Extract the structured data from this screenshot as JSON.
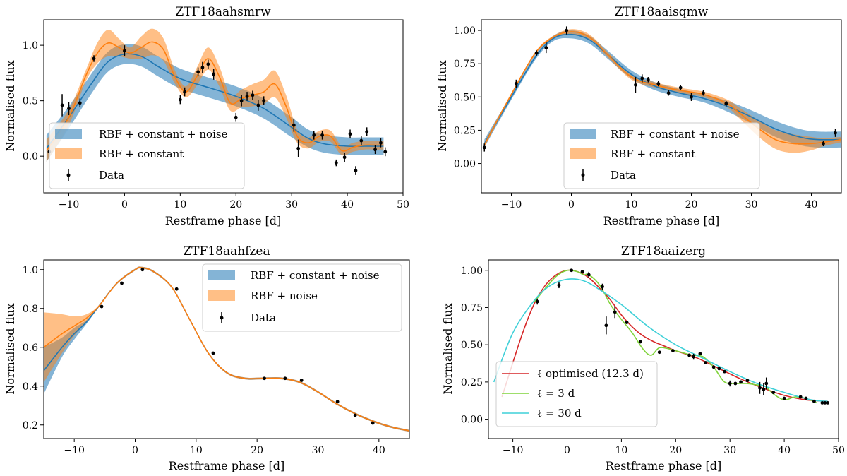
{
  "figure": {
    "panel_titles": [
      "ZTF18aahsmrw",
      "ZTF18aaisqmw",
      "ZTF18aahfzea",
      "ZTF18aaizerg"
    ],
    "xlabel": "Restframe phase [d]",
    "ylabel": "Normalised flux"
  },
  "colors": {
    "blue": "#1f77b4",
    "orange": "#ff7f0e",
    "red": "#d62728",
    "green": "#7fd33a",
    "cyan": "#3fd0d8",
    "data": "#000000"
  },
  "chart_data": [
    {
      "type": "line",
      "title": "ZTF18aahsmrw",
      "xlabel": "Restframe phase [d]",
      "ylabel": "Normalised flux",
      "xlim": [
        -14.5,
        50
      ],
      "ylim": [
        -0.33,
        1.23
      ],
      "xticks": [
        -10,
        0,
        10,
        20,
        30,
        40,
        50
      ],
      "yticks": [
        0.0,
        0.5,
        1.0
      ],
      "ytick_labels": [
        "0.0",
        "0.5",
        "1.0"
      ],
      "legend_position": "lower-left",
      "legend": [
        "RBF + constant + noise",
        "RBF + constant",
        "Data"
      ],
      "series": [
        {
          "name": "RBF + constant + noise",
          "color": "blue",
          "band": true,
          "x": [
            -14,
            -10,
            -6,
            -3,
            0,
            3,
            6,
            10,
            15,
            20,
            25,
            30,
            33,
            36,
            40,
            43,
            46.5
          ],
          "y": [
            0.07,
            0.35,
            0.65,
            0.85,
            0.92,
            0.9,
            0.81,
            0.7,
            0.62,
            0.54,
            0.43,
            0.26,
            0.16,
            0.11,
            0.09,
            0.09,
            0.09
          ],
          "err": [
            0.12,
            0.1,
            0.09,
            0.09,
            0.09,
            0.09,
            0.09,
            0.09,
            0.09,
            0.09,
            0.09,
            0.09,
            0.08,
            0.08,
            0.08,
            0.08,
            0.08
          ]
        },
        {
          "name": "RBF + constant",
          "color": "orange",
          "band": true,
          "x": [
            -14,
            -10,
            -7,
            -5,
            -3,
            -1,
            1,
            3,
            5,
            7,
            9,
            11,
            13,
            15,
            17,
            19,
            21,
            23,
            25,
            27,
            29,
            31,
            33,
            35,
            37,
            39,
            41,
            43,
            45,
            46.5
          ],
          "y": [
            0.05,
            0.35,
            0.72,
            0.92,
            1.02,
            0.98,
            0.93,
            0.98,
            1.03,
            0.96,
            0.72,
            0.58,
            0.72,
            0.88,
            0.72,
            0.48,
            0.52,
            0.55,
            0.58,
            0.65,
            0.45,
            0.18,
            0.12,
            0.18,
            0.18,
            0.05,
            0.08,
            0.1,
            0.1,
            0.1
          ],
          "err": [
            0.1,
            0.07,
            0.05,
            0.09,
            0.12,
            0.08,
            0.05,
            0.1,
            0.12,
            0.1,
            0.06,
            0.05,
            0.08,
            0.1,
            0.09,
            0.07,
            0.08,
            0.1,
            0.11,
            0.12,
            0.1,
            0.06,
            0.05,
            0.05,
            0.05,
            0.04,
            0.04,
            0.04,
            0.04,
            0.04
          ]
        }
      ],
      "points": {
        "name": "Data",
        "x": [
          -13.5,
          -11.2,
          -10,
          -8,
          -5.5,
          0,
          10,
          10.8,
          13.2,
          14,
          15,
          16,
          20,
          21,
          22,
          23,
          24,
          25,
          30.4,
          31.2,
          34,
          35.5,
          38,
          39.5,
          40.5,
          41.5,
          42.5,
          43.5,
          45,
          46,
          46.8
        ],
        "y": [
          0.04,
          0.46,
          0.43,
          0.48,
          0.88,
          0.95,
          0.51,
          0.58,
          0.76,
          0.8,
          0.83,
          0.74,
          0.35,
          0.5,
          0.54,
          0.55,
          0.46,
          0.5,
          0.28,
          0.07,
          0.19,
          0.19,
          -0.06,
          -0.01,
          0.2,
          -0.13,
          0.14,
          0.22,
          0.06,
          0.12,
          0.04
        ],
        "err": [
          0.05,
          0.1,
          0.06,
          0.04,
          0.03,
          0.05,
          0.04,
          0.04,
          0.04,
          0.05,
          0.04,
          0.05,
          0.04,
          0.05,
          0.04,
          0.04,
          0.05,
          0.04,
          0.06,
          0.08,
          0.04,
          0.04,
          0.03,
          0.04,
          0.04,
          0.04,
          0.04,
          0.04,
          0.04,
          0.04,
          0.04
        ]
      }
    },
    {
      "type": "line",
      "title": "ZTF18aaisqmw",
      "xlabel": "Restframe phase [d]",
      "ylabel": "Normalised flux",
      "xlim": [
        -15,
        45
      ],
      "ylim": [
        -0.22,
        1.08
      ],
      "xticks": [
        -10,
        0,
        10,
        20,
        30,
        40
      ],
      "yticks": [
        0.0,
        0.25,
        0.5,
        0.75,
        1.0
      ],
      "ytick_labels": [
        "0.00",
        "0.25",
        "0.50",
        "0.75",
        "1.00"
      ],
      "legend_position": "lower-center",
      "legend": [
        "RBF + constant + noise",
        "RBF + constant",
        "Data"
      ],
      "series": [
        {
          "name": "RBF + constant + noise",
          "color": "blue",
          "band": true,
          "x": [
            -14.5,
            -10,
            -6,
            -3,
            0,
            3,
            6,
            10,
            14,
            18,
            22,
            26,
            30,
            34,
            38,
            41,
            45
          ],
          "y": [
            0.15,
            0.5,
            0.8,
            0.94,
            0.97,
            0.93,
            0.82,
            0.67,
            0.58,
            0.53,
            0.49,
            0.43,
            0.35,
            0.26,
            0.2,
            0.18,
            0.18
          ],
          "err": [
            0.03,
            0.02,
            0.02,
            0.02,
            0.03,
            0.03,
            0.03,
            0.03,
            0.03,
            0.03,
            0.03,
            0.04,
            0.05,
            0.06,
            0.06,
            0.06,
            0.06
          ]
        },
        {
          "name": "RBF + constant",
          "color": "orange",
          "band": true,
          "x": [
            -14.5,
            -10,
            -6,
            -3,
            0,
            3,
            6,
            10,
            14,
            18,
            22,
            26,
            28,
            31,
            34,
            37,
            40,
            42,
            45
          ],
          "y": [
            0.14,
            0.52,
            0.83,
            0.95,
            0.99,
            0.95,
            0.82,
            0.65,
            0.59,
            0.55,
            0.52,
            0.45,
            0.38,
            0.27,
            0.18,
            0.15,
            0.15,
            0.16,
            0.18
          ],
          "err": [
            0.02,
            0.01,
            0.01,
            0.01,
            0.02,
            0.02,
            0.02,
            0.02,
            0.02,
            0.02,
            0.02,
            0.03,
            0.04,
            0.06,
            0.07,
            0.07,
            0.05,
            0.03,
            0.02
          ]
        }
      ],
      "points": {
        "name": "Data",
        "x": [
          -14.5,
          -9.2,
          -5.8,
          -4.2,
          -0.8,
          10.7,
          11.8,
          12.8,
          14.5,
          16.2,
          18.2,
          20,
          22,
          25.8,
          42,
          44
        ],
        "y": [
          0.12,
          0.6,
          0.83,
          0.87,
          1.0,
          0.59,
          0.64,
          0.63,
          0.6,
          0.53,
          0.57,
          0.5,
          0.53,
          0.45,
          0.15,
          0.23
        ],
        "err": [
          0.03,
          0.03,
          0.02,
          0.04,
          0.03,
          0.06,
          0.03,
          0.02,
          0.02,
          0.02,
          0.02,
          0.03,
          0.02,
          0.02,
          0.02,
          0.03
        ]
      }
    },
    {
      "type": "line",
      "title": "ZTF18aahfzea",
      "xlabel": "Restframe phase [d]",
      "ylabel": "Normalised flux",
      "xlim": [
        -15,
        45
      ],
      "ylim": [
        0.13,
        1.05
      ],
      "xticks": [
        -10,
        0,
        10,
        20,
        30,
        40
      ],
      "yticks": [
        0.2,
        0.4,
        0.6,
        0.8,
        1.0
      ],
      "ytick_labels": [
        "0.2",
        "0.4",
        "0.6",
        "0.8",
        "1.0"
      ],
      "legend_position": "top-right",
      "legend": [
        "RBF + constant + noise",
        "RBF + noise",
        "Data"
      ],
      "series": [
        {
          "name": "RBF + constant + noise",
          "color": "blue",
          "band": true,
          "x": [
            -15,
            -12,
            -10,
            -8,
            -6,
            -3,
            0,
            1,
            3,
            6,
            9,
            12,
            15,
            18,
            21,
            24,
            27,
            30,
            33,
            36,
            39,
            42,
            45
          ],
          "y": [
            0.48,
            0.6,
            0.67,
            0.73,
            0.81,
            0.93,
            1.0,
            1.01,
            0.99,
            0.91,
            0.74,
            0.57,
            0.47,
            0.44,
            0.44,
            0.44,
            0.42,
            0.37,
            0.31,
            0.26,
            0.22,
            0.19,
            0.17
          ],
          "err": [
            0.12,
            0.05,
            0.03,
            0.01,
            0.005,
            0.005,
            0.005,
            0.005,
            0.005,
            0.005,
            0.005,
            0.005,
            0.005,
            0.005,
            0.005,
            0.005,
            0.005,
            0.005,
            0.005,
            0.005,
            0.005,
            0.005,
            0.005
          ]
        },
        {
          "name": "RBF + noise",
          "color": "orange",
          "band": true,
          "x": [
            -15,
            -12,
            -10,
            -8,
            -6,
            -3,
            0,
            1,
            3,
            6,
            9,
            12,
            15,
            18,
            21,
            24,
            27,
            30,
            33,
            36,
            39,
            42,
            45
          ],
          "y": [
            0.6,
            0.67,
            0.71,
            0.75,
            0.81,
            0.93,
            1.0,
            1.01,
            0.99,
            0.91,
            0.74,
            0.57,
            0.47,
            0.44,
            0.44,
            0.44,
            0.42,
            0.37,
            0.31,
            0.26,
            0.22,
            0.19,
            0.17
          ],
          "err": [
            0.18,
            0.1,
            0.05,
            0.02,
            0.005,
            0.005,
            0.005,
            0.005,
            0.005,
            0.005,
            0.005,
            0.005,
            0.005,
            0.005,
            0.005,
            0.005,
            0.005,
            0.005,
            0.005,
            0.005,
            0.005,
            0.005,
            0.005
          ]
        }
      ],
      "points": {
        "name": "Data",
        "x": [
          -5.5,
          -2.2,
          1.2,
          6.8,
          12.8,
          21.2,
          24.6,
          27.3,
          33.2,
          36.1,
          39
        ],
        "y": [
          0.81,
          0.93,
          1.0,
          0.9,
          0.57,
          0.44,
          0.44,
          0.43,
          0.32,
          0.25,
          0.21
        ],
        "err": [
          0.0,
          0.0,
          0.0,
          0.0,
          0.0,
          0.0,
          0.0,
          0.0,
          0.0,
          0.0,
          0.0
        ]
      }
    },
    {
      "type": "line",
      "title": "ZTF18aaizerg",
      "xlabel": "Restframe phase [d]",
      "ylabel": "Normalised flux",
      "xlim": [
        -14.5,
        50
      ],
      "ylim": [
        -0.13,
        1.07
      ],
      "xticks": [
        -10,
        0,
        10,
        20,
        30,
        40,
        50
      ],
      "yticks": [
        0.0,
        0.25,
        0.5,
        0.75,
        1.0
      ],
      "ytick_labels": [
        "0.00",
        "0.25",
        "0.50",
        "0.75",
        "1.00"
      ],
      "legend_position": "lower-left",
      "legend": [
        "ℓ optimised (12.3 d)",
        "ℓ = 3 d",
        "ℓ = 30 d"
      ],
      "series": [
        {
          "name": "ℓ optimised (12.3 d)",
          "color": "red",
          "band": false,
          "x": [
            -12,
            -10,
            -8,
            -6,
            -4,
            -2,
            0,
            2,
            4,
            6,
            8,
            10,
            12,
            14,
            16,
            18,
            20,
            24,
            28,
            32,
            36,
            40,
            44,
            48
          ],
          "y": [
            0.15,
            0.38,
            0.6,
            0.78,
            0.9,
            0.97,
            1.0,
            0.99,
            0.95,
            0.88,
            0.8,
            0.7,
            0.62,
            0.56,
            0.52,
            0.49,
            0.46,
            0.41,
            0.34,
            0.27,
            0.21,
            0.16,
            0.13,
            0.12
          ]
        },
        {
          "name": "ℓ = 3 d",
          "color": "green",
          "band": false,
          "x": [
            -6,
            -4,
            -2,
            0,
            2,
            3,
            4,
            6,
            8,
            10,
            12,
            14,
            15.5,
            17,
            19,
            21,
            23,
            25,
            27,
            29,
            31,
            33,
            35,
            36.5,
            38,
            40,
            42,
            44,
            46
          ],
          "y": [
            0.79,
            0.88,
            0.96,
            1.0,
            0.99,
            0.97,
            0.97,
            0.9,
            0.77,
            0.67,
            0.58,
            0.47,
            0.43,
            0.48,
            0.47,
            0.45,
            0.43,
            0.42,
            0.35,
            0.25,
            0.24,
            0.24,
            0.23,
            0.22,
            0.17,
            0.13,
            0.15,
            0.14,
            0.11
          ]
        },
        {
          "name": "ℓ = 30 d",
          "color": "cyan",
          "band": false,
          "x": [
            -13.5,
            -10,
            -6,
            -3,
            0,
            3,
            6,
            10,
            15,
            20,
            25,
            30,
            35,
            40,
            45,
            48
          ],
          "y": [
            0.25,
            0.58,
            0.8,
            0.9,
            0.94,
            0.93,
            0.87,
            0.77,
            0.62,
            0.5,
            0.41,
            0.32,
            0.24,
            0.18,
            0.13,
            0.12
          ]
        }
      ],
      "points": {
        "name": "Data",
        "x": [
          -5.5,
          -1.5,
          0.8,
          2.8,
          4,
          6.5,
          7.2,
          8.8,
          11,
          13.5,
          17,
          19.5,
          22.5,
          23.3,
          24.5,
          25.5,
          27,
          28,
          29,
          30,
          31,
          32,
          33.2,
          35.5,
          36.2,
          36.7,
          38,
          40,
          43,
          44,
          45.5,
          47,
          47.5,
          48
        ],
        "y": [
          0.79,
          0.9,
          1.0,
          0.99,
          0.97,
          0.89,
          0.63,
          0.72,
          0.65,
          0.52,
          0.45,
          0.46,
          0.43,
          0.42,
          0.44,
          0.38,
          0.35,
          0.34,
          0.32,
          0.24,
          0.24,
          0.25,
          0.26,
          0.21,
          0.2,
          0.24,
          0.18,
          0.14,
          0.15,
          0.14,
          0.12,
          0.11,
          0.11,
          0.11
        ],
        "err": [
          0.02,
          0.02,
          0.0,
          0.01,
          0.02,
          0.02,
          0.06,
          0.04,
          0.01,
          0.01,
          0.01,
          0.01,
          0.01,
          0.02,
          0.01,
          0.01,
          0.01,
          0.01,
          0.01,
          0.02,
          0.01,
          0.01,
          0.01,
          0.04,
          0.04,
          0.04,
          0.01,
          0.01,
          0.01,
          0.01,
          0.01,
          0.0,
          0.0,
          0.0
        ]
      }
    }
  ]
}
